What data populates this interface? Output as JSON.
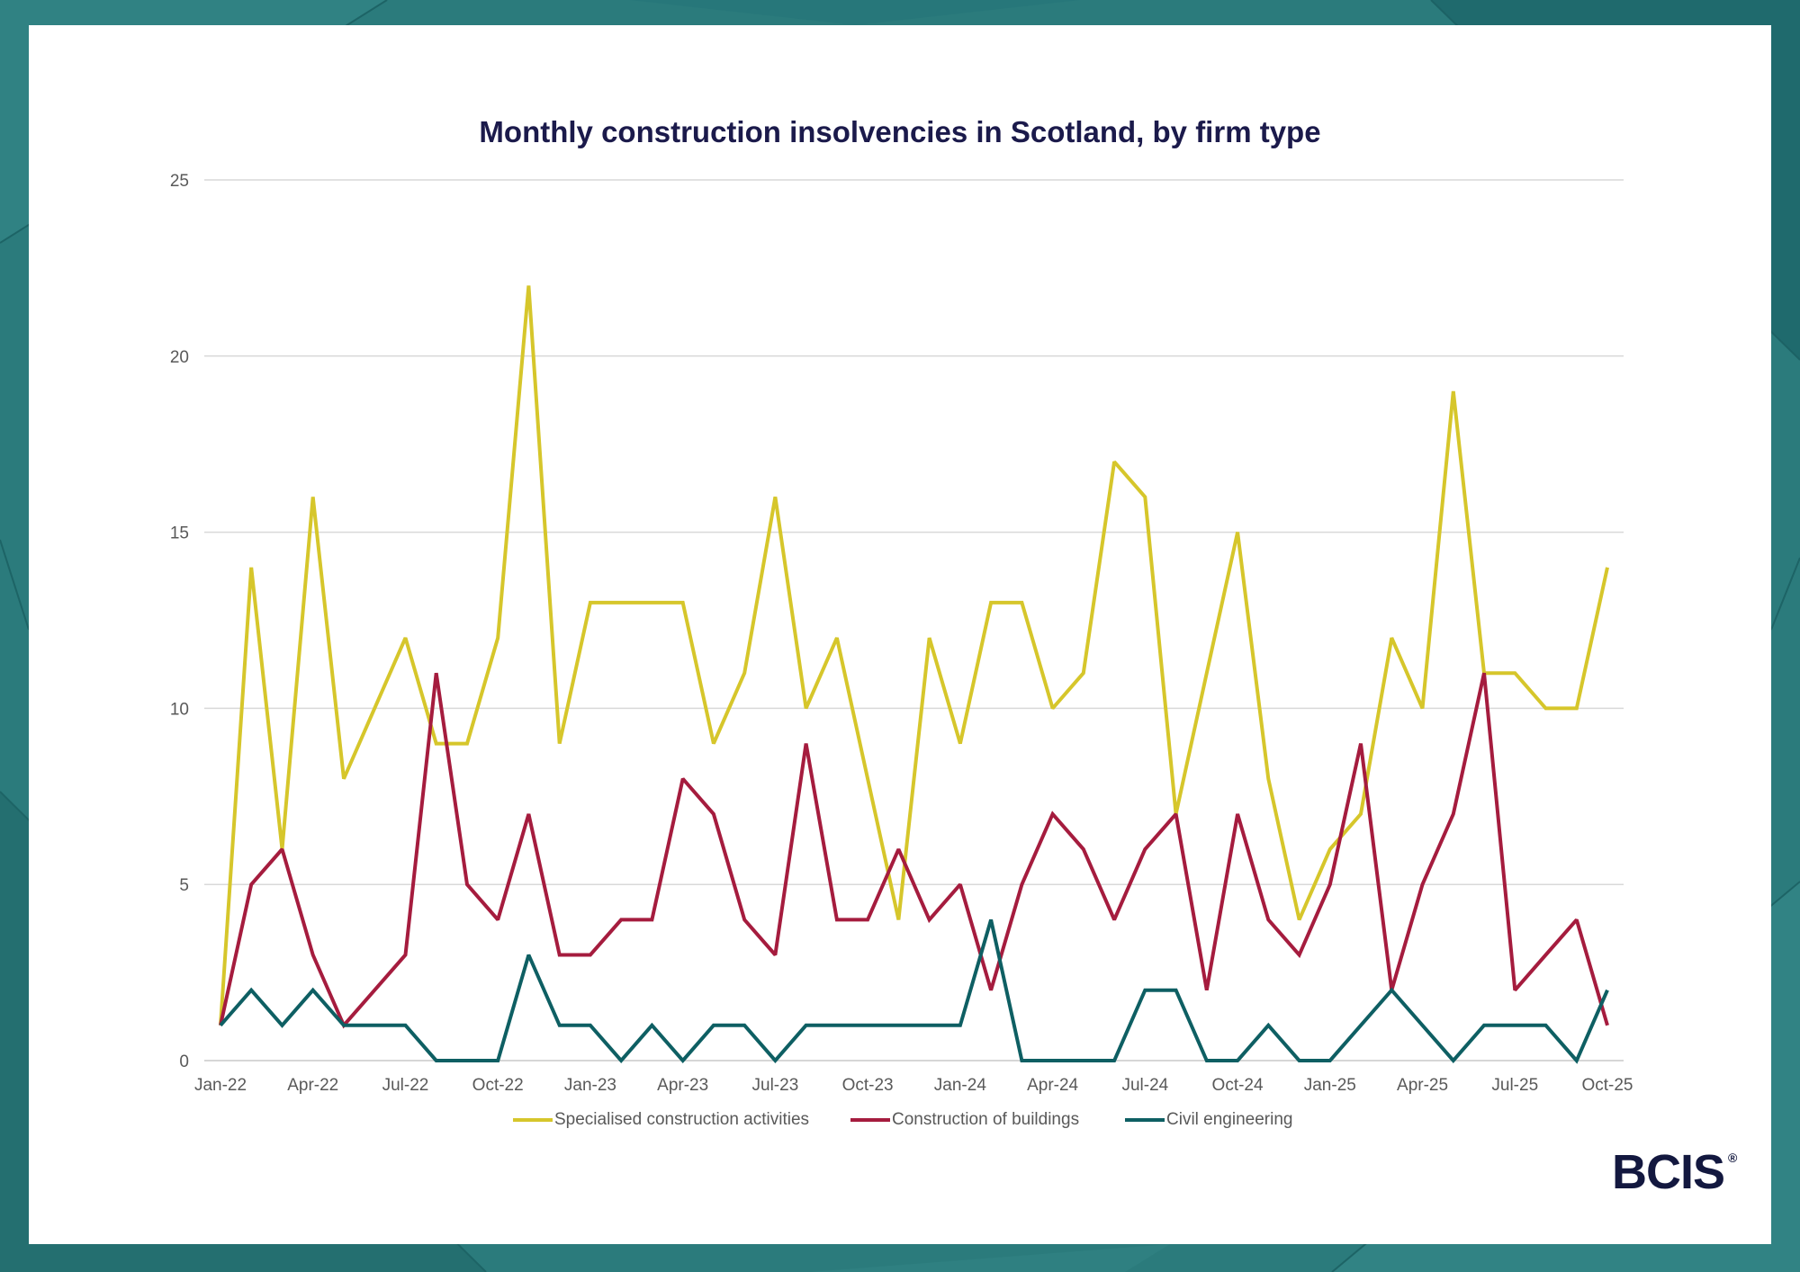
{
  "chart_data": {
    "type": "line",
    "title": "Monthly construction insolvencies in Scotland, by firm type",
    "xlabel": "",
    "ylabel": "",
    "ylim": [
      0,
      25
    ],
    "yticks": [
      0,
      5,
      10,
      15,
      20,
      25
    ],
    "grid": true,
    "legend": "bottom-center",
    "x": [
      "Jan-22",
      "Feb-22",
      "Mar-22",
      "Apr-22",
      "May-22",
      "Jun-22",
      "Jul-22",
      "Aug-22",
      "Sep-22",
      "Oct-22",
      "Nov-22",
      "Dec-22",
      "Jan-23",
      "Feb-23",
      "Mar-23",
      "Apr-23",
      "May-23",
      "Jun-23",
      "Jul-23",
      "Aug-23",
      "Sep-23",
      "Oct-23",
      "Nov-23",
      "Dec-23",
      "Jan-24",
      "Feb-24",
      "Mar-24",
      "Apr-24",
      "May-24",
      "Jun-24",
      "Jul-24",
      "Aug-24",
      "Sep-24",
      "Oct-24",
      "Nov-24",
      "Dec-24",
      "Jan-25",
      "Feb-25",
      "Mar-25",
      "Apr-25",
      "May-25",
      "Jun-25",
      "Jul-25",
      "Aug-25",
      "Sep-25",
      "Oct-25"
    ],
    "series": [
      {
        "name": "Specialised construction activities",
        "color": "#d6c62b",
        "values": [
          1,
          14,
          6,
          16,
          8,
          10,
          12,
          9,
          9,
          12,
          22,
          9,
          13,
          13,
          13,
          13,
          9,
          11,
          16,
          10,
          12,
          8,
          4,
          12,
          9,
          13,
          13,
          10,
          11,
          17,
          16,
          7,
          11,
          15,
          8,
          4,
          6,
          7,
          12,
          10,
          19,
          11,
          11,
          10,
          10,
          14
        ]
      },
      {
        "name": "Construction of buildings",
        "color": "#a51c3e",
        "values": [
          1,
          5,
          6,
          3,
          1,
          2,
          3,
          11,
          5,
          4,
          7,
          3,
          3,
          4,
          4,
          8,
          7,
          4,
          3,
          9,
          4,
          4,
          6,
          4,
          5,
          2,
          5,
          7,
          6,
          4,
          6,
          7,
          2,
          7,
          4,
          3,
          5,
          9,
          2,
          5,
          7,
          11,
          2,
          3,
          4,
          1
        ]
      },
      {
        "name": "Civil engineering",
        "color": "#0e5f63",
        "values": [
          1,
          2,
          1,
          2,
          1,
          1,
          1,
          0,
          0,
          0,
          3,
          1,
          1,
          0,
          1,
          0,
          1,
          1,
          0,
          1,
          1,
          1,
          1,
          1,
          1,
          4,
          0,
          0,
          0,
          0,
          2,
          2,
          0,
          0,
          1,
          0,
          0,
          1,
          2,
          1,
          0,
          1,
          1,
          1,
          0,
          2
        ]
      }
    ]
  },
  "logo": {
    "text": "BCIS",
    "registered": "®"
  }
}
